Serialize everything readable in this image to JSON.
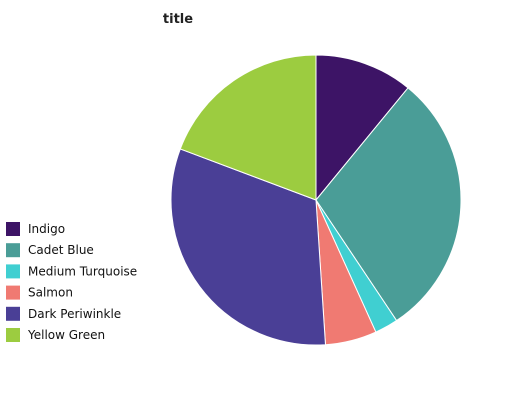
{
  "chart_data": {
    "type": "pie",
    "title": "title",
    "legend_position": "bottom-left",
    "start_angle_deg": 90,
    "direction": "clockwise",
    "slices": [
      {
        "label": "Indigo",
        "value": 10.5,
        "color": "#3d1466"
      },
      {
        "label": "Cadet Blue",
        "value": 28.5,
        "color": "#4a9d97"
      },
      {
        "label": "Medium Turquoise",
        "value": 2.5,
        "color": "#40cfd1"
      },
      {
        "label": "Salmon",
        "value": 5.5,
        "color": "#f07a72"
      },
      {
        "label": "Dark Periwinkle",
        "value": 30.5,
        "color": "#4a3f96"
      },
      {
        "label": "Yellow Green",
        "value": 18.5,
        "color": "#9ccc40"
      }
    ]
  }
}
